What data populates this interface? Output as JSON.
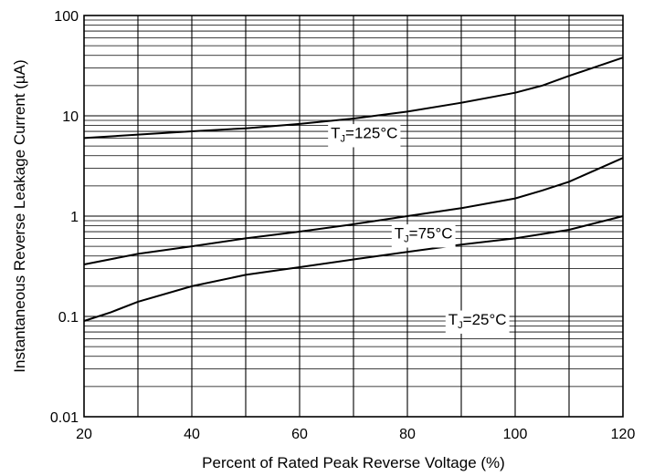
{
  "chart_data": {
    "type": "line",
    "xlabel": "Percent of Rated Peak Reverse Voltage (%)",
    "ylabel": "Instantaneous Reverse Leakage Current (µA)",
    "xlim": [
      20,
      120
    ],
    "ylim": [
      0.01,
      100
    ],
    "y_scale": "log",
    "grid": true,
    "x_ticks": [
      20,
      40,
      60,
      80,
      100,
      120
    ],
    "x_tick_labels": [
      "20",
      "40",
      "60",
      "80",
      "100",
      "120"
    ],
    "x_minor_gridlines": [
      30,
      50,
      70,
      90,
      110
    ],
    "y_ticks": [
      0.01,
      0.1,
      1,
      10,
      100
    ],
    "y_tick_labels": [
      "0.01",
      "0.1",
      "1",
      "10",
      "100"
    ],
    "series": [
      {
        "label_main": "T",
        "label_sub": "J",
        "label_rest": "=125°C",
        "label_at": [
          72,
          6.5
        ],
        "x": [
          20,
          30,
          40,
          50,
          60,
          70,
          80,
          90,
          100,
          105,
          110,
          120
        ],
        "y": [
          6.0,
          6.5,
          7.0,
          7.5,
          8.3,
          9.4,
          11.0,
          13.5,
          17.0,
          20.0,
          25.0,
          38.0
        ]
      },
      {
        "label_main": "T",
        "label_sub": "J",
        "label_rest": "=75°C",
        "label_at": [
          83,
          0.65
        ],
        "x": [
          20,
          30,
          40,
          50,
          60,
          70,
          80,
          90,
          100,
          105,
          110,
          120
        ],
        "y": [
          0.33,
          0.42,
          0.5,
          0.6,
          0.7,
          0.83,
          1.0,
          1.2,
          1.5,
          1.8,
          2.2,
          3.8
        ]
      },
      {
        "label_main": "T",
        "label_sub": "J",
        "label_rest": "=25°C",
        "label_at": [
          93,
          0.09
        ],
        "x": [
          20,
          25,
          30,
          40,
          50,
          60,
          70,
          80,
          90,
          100,
          110,
          120
        ],
        "y": [
          0.09,
          0.11,
          0.14,
          0.2,
          0.26,
          0.31,
          0.37,
          0.44,
          0.52,
          0.6,
          0.73,
          1.0
        ]
      }
    ]
  }
}
